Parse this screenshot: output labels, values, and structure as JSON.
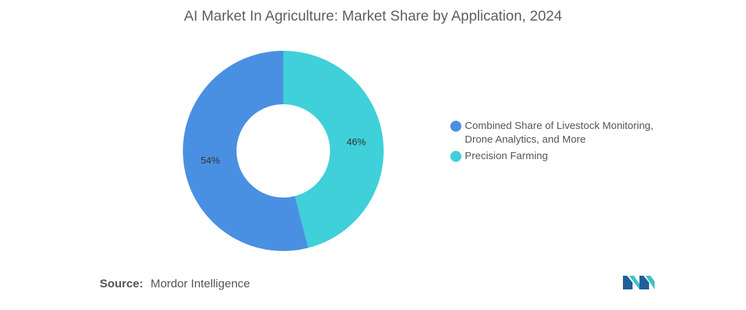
{
  "chart_data": {
    "type": "pie",
    "donut": true,
    "title": "AI Market In Agriculture: Market Share by Application, 2024",
    "categories": [
      "Combined Share of Livestock Monitoring, Drone Analytics, and More",
      "Precision Farming"
    ],
    "values": [
      54,
      46
    ],
    "value_labels": [
      "54%",
      "46%"
    ],
    "unit": "%",
    "colors": [
      "#4a90e2",
      "#3fd0d9"
    ],
    "legend_position": "right"
  },
  "legend": {
    "items": [
      {
        "line1": "Combined Share of Livestock Monitoring,",
        "line2": "Drone Analytics, and More",
        "color": "#4a90e2"
      },
      {
        "line1": "Precision Farming",
        "line2": "",
        "color": "#3fd0d9"
      }
    ]
  },
  "source": {
    "key": "Source:",
    "value": "Mordor Intelligence"
  },
  "logo": {
    "icon": "mordor-intelligence-logo-icon",
    "colors": [
      "#1f5f9a",
      "#3fc1c9"
    ]
  }
}
